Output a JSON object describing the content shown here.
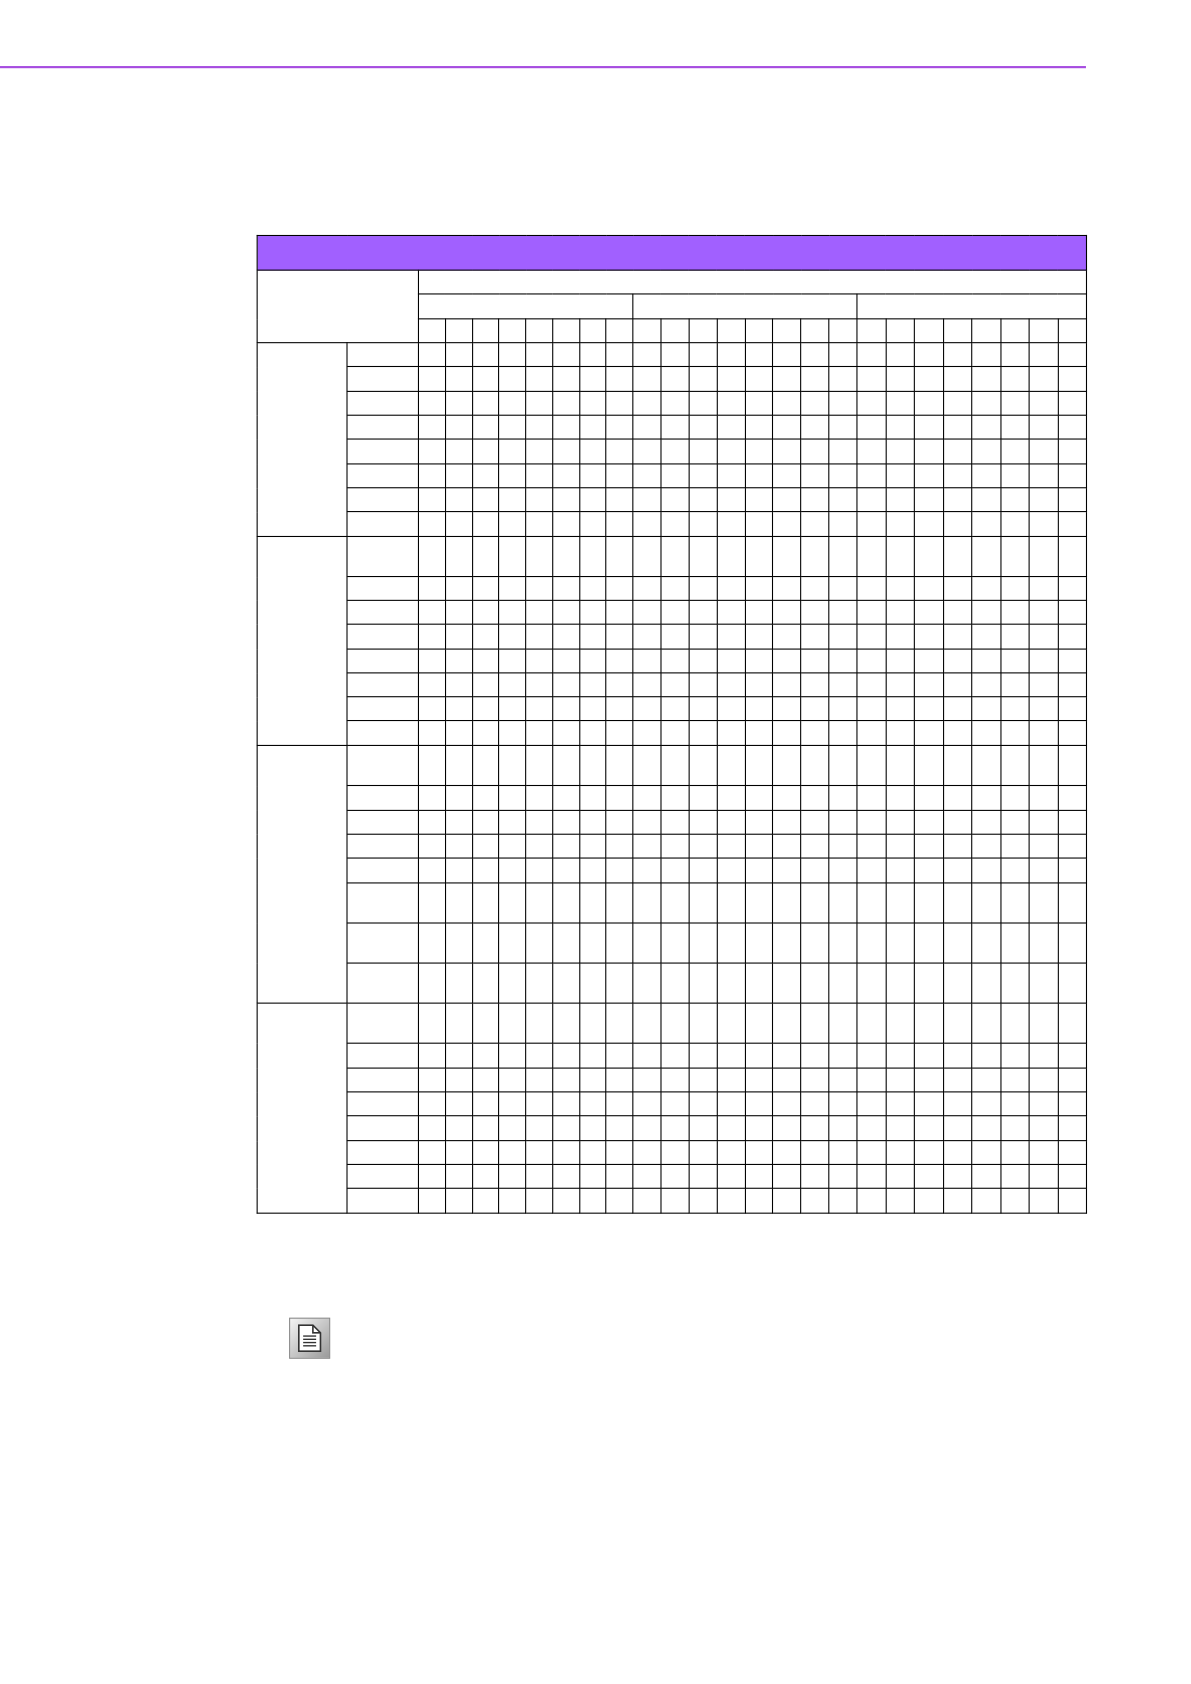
{
  "colors": {
    "accent": "#a160ff",
    "rule": "#a64ce0"
  },
  "table": {
    "groups": [
      {
        "row_heights": [
          22,
          23,
          22,
          22,
          23,
          22,
          22,
          23
        ]
      },
      {
        "row_heights": [
          37,
          22,
          22,
          23,
          22,
          22,
          22,
          23
        ]
      },
      {
        "row_heights": [
          37,
          23,
          22,
          22,
          23,
          37,
          37,
          37
        ]
      },
      {
        "row_heights": [
          37,
          23,
          22,
          22,
          23,
          22,
          22,
          23
        ]
      }
    ],
    "column_groups": 3,
    "columns_per_group": 8
  },
  "note": {
    "icon": "note-document-icon"
  }
}
